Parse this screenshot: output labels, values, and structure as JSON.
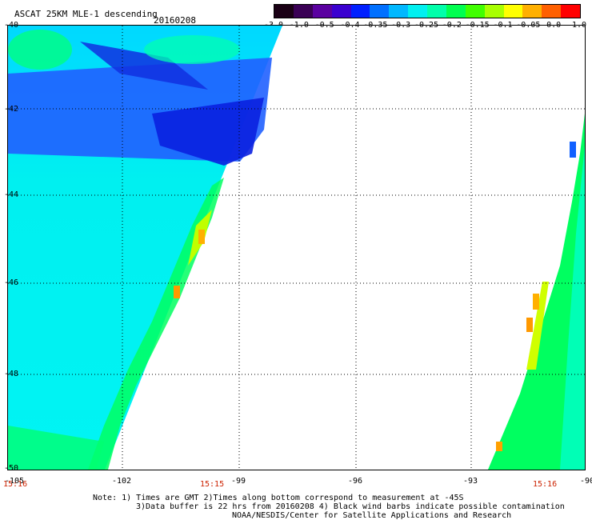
{
  "header": {
    "title": "ASCAT 25KM MLE-1 descending",
    "date": "20160208"
  },
  "colorbar": {
    "labels": [
      "-3.0",
      "-1.0",
      "-0.5",
      "-0.4",
      "-0.35",
      "-0.3",
      "-0.25",
      "-0.2",
      "-0.15",
      "-0.1",
      "-0.05",
      "0.0",
      "1.0"
    ],
    "colors": [
      "#1a0015",
      "#3a0055",
      "#5a00a0",
      "#3a00d0",
      "#0020ff",
      "#0070ff",
      "#00b8ff",
      "#00f0f0",
      "#00ffaa",
      "#00ff50",
      "#40ff00",
      "#a8ff00",
      "#ffff00",
      "#ffb000",
      "#ff6000",
      "#ff0000"
    ]
  },
  "map": {
    "lat_labels": [
      "-40",
      "-42",
      "-44",
      "-46",
      "-48",
      "-50"
    ],
    "lon_labels": [
      "-105",
      "-102",
      "-99",
      "-96",
      "-93",
      "-90"
    ],
    "time_labels": {
      "left": "15:16",
      "middle": "15:15",
      "right": "15:16"
    }
  },
  "notes": [
    "Note: 1) Times are GMT 2)Times along bottom correspond to measurement at -45S",
    "3)Data buffer is 22 hrs from 20160208 4) Black wind barbs indicate possible contamination",
    "NOAA/NESDIS/Center for Satellite Applications and Research"
  ]
}
